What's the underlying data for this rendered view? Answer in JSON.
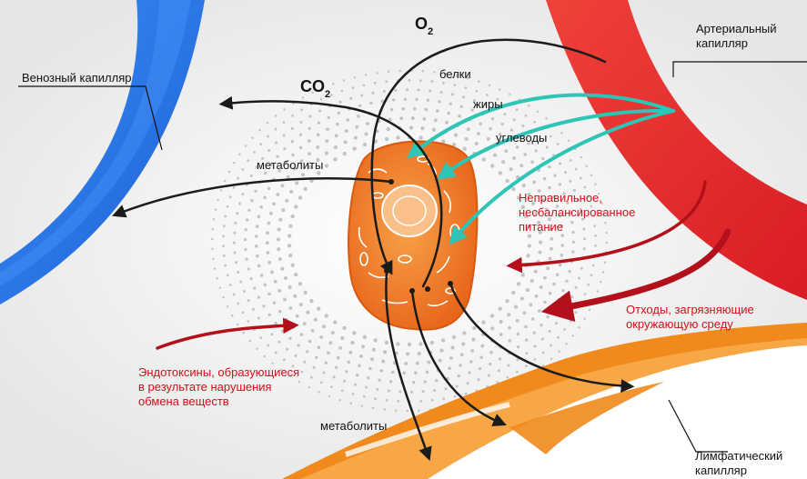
{
  "labels": {
    "venous": "Венозный капилляр",
    "arterial_1": "Артериальный",
    "arterial_2": "капилляр",
    "lymph_1": "Лимфатический",
    "lymph_2": "капилляр",
    "o2_main": "O",
    "o2_sub": "2",
    "co2_main": "CO",
    "co2_sub": "2",
    "proteins": "белки",
    "fats": "жиры",
    "carbs": "углеводы",
    "metabolites_top": "метаболиты",
    "metabolites_bottom": "метаболиты",
    "nutrition_1": "Неправильное,",
    "nutrition_2": "несбалансированное",
    "nutrition_3": "питание",
    "waste_1": "Отходы, загрязняющие",
    "waste_2": "окружающую среду",
    "endo_1": "Эндотоксины, образующиеся",
    "endo_2": "в результате нарушения",
    "endo_3": "обмена веществ"
  },
  "colors": {
    "venous": "#1e6fe8",
    "arterial": "#e8232a",
    "lymph": "#f08a1c",
    "cell": "#f07c1e",
    "nutrient_arrow": "#2ec4b6",
    "red_arrow": "#b3101c",
    "label_red": "#d0101a"
  }
}
